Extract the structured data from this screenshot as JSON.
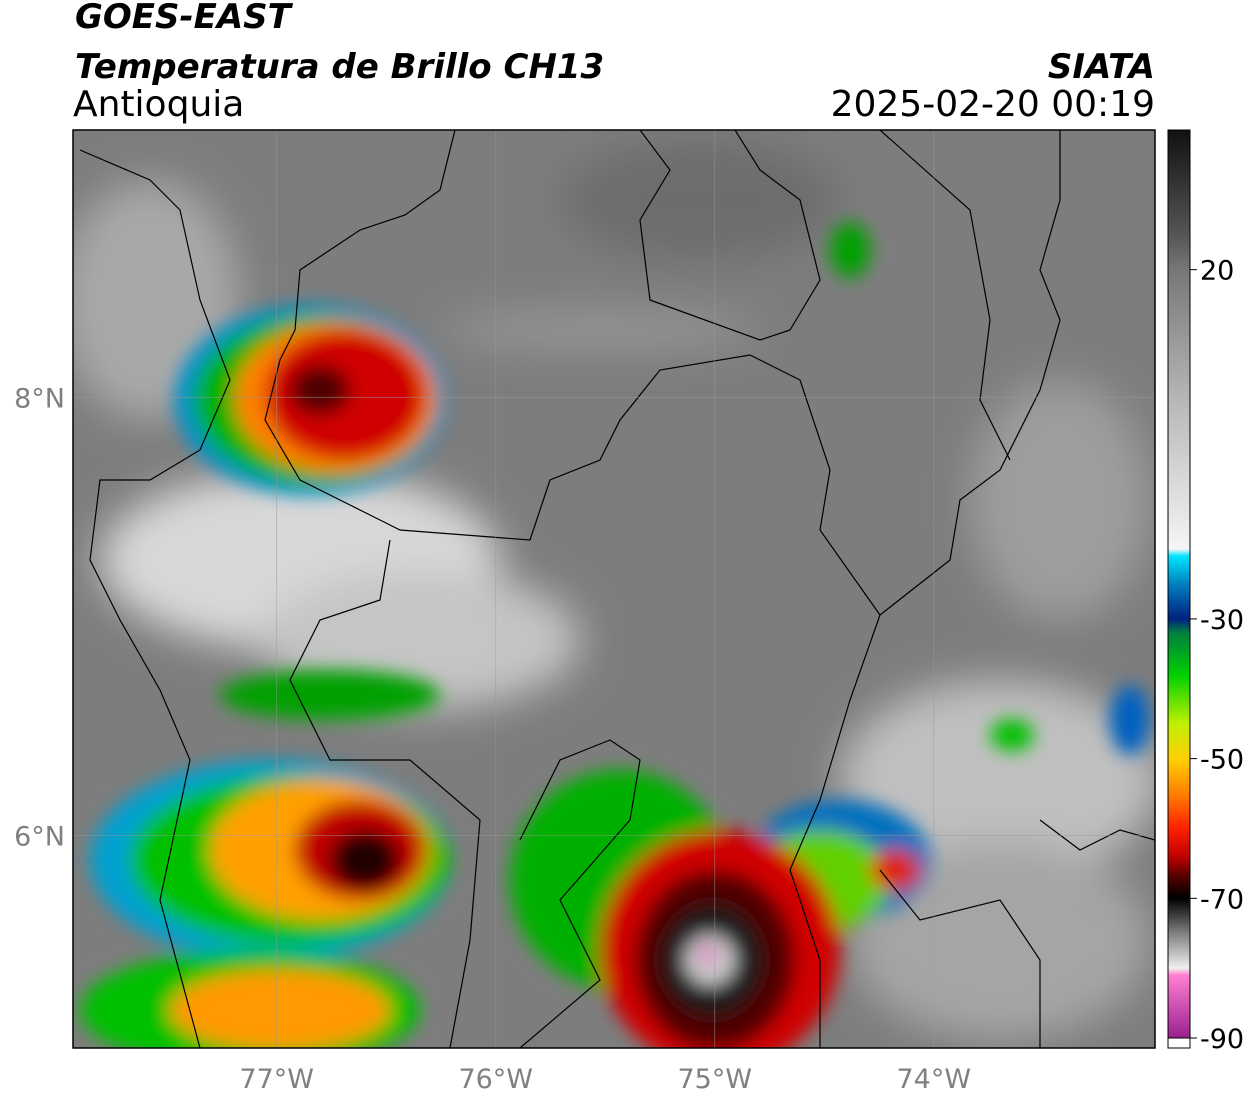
{
  "header": {
    "title": "GOES-EAST",
    "subtitle": "Temperatura de Brillo CH13",
    "region": "Antioquia",
    "source": "SIATA",
    "datetime": "2025-02-20 00:19"
  },
  "map": {
    "xlim": [
      -77.93,
      -72.99
    ],
    "ylim": [
      5.03,
      9.22
    ],
    "xticks": [
      {
        "value": -77,
        "label": "77°W"
      },
      {
        "value": -76,
        "label": "76°W"
      },
      {
        "value": -75,
        "label": "75°W"
      },
      {
        "value": -74,
        "label": "74°W"
      }
    ],
    "yticks": [
      {
        "value": 6,
        "label": "6°N"
      },
      {
        "value": 8,
        "label": "8°N"
      }
    ],
    "grid": true
  },
  "colorbar": {
    "lim": [
      -90,
      40
    ],
    "ticks": [
      20,
      -30,
      -50,
      -70,
      -90
    ],
    "colorscale": [
      {
        "value": 40,
        "color": "#111111"
      },
      {
        "value": 25,
        "color": "#555555"
      },
      {
        "value": 20,
        "color": "#777777"
      },
      {
        "value": 0,
        "color": "#bbbbbb"
      },
      {
        "value": -20,
        "color": "#f5f5f5"
      },
      {
        "value": -21,
        "color": "#00e5ff"
      },
      {
        "value": -25,
        "color": "#0080c0"
      },
      {
        "value": -30,
        "color": "#002080"
      },
      {
        "value": -32,
        "color": "#008040"
      },
      {
        "value": -38,
        "color": "#00d000"
      },
      {
        "value": -45,
        "color": "#c0f000"
      },
      {
        "value": -50,
        "color": "#ffd000"
      },
      {
        "value": -55,
        "color": "#ff8000"
      },
      {
        "value": -60,
        "color": "#ff2000"
      },
      {
        "value": -64,
        "color": "#c00000"
      },
      {
        "value": -67,
        "color": "#500000"
      },
      {
        "value": -70,
        "color": "#000000"
      },
      {
        "value": -75,
        "color": "#808080"
      },
      {
        "value": -80,
        "color": "#f0f0f0"
      },
      {
        "value": -81,
        "color": "#ff80d0"
      },
      {
        "value": -90,
        "color": "#9a2090"
      }
    ]
  }
}
